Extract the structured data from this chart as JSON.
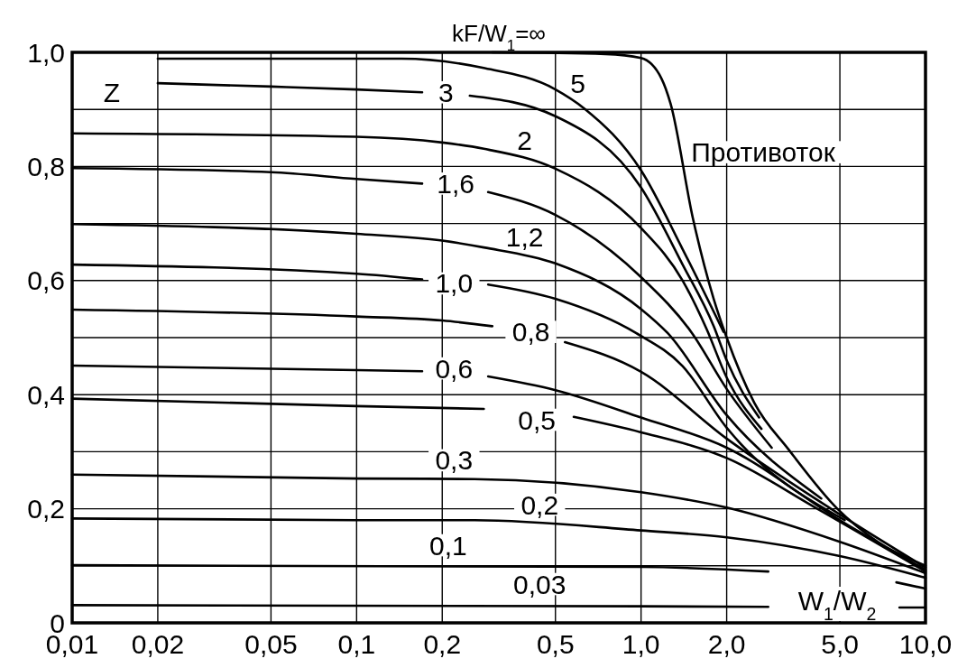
{
  "chart_data": {
    "type": "line",
    "title": "kF/W$_{1}$=∞",
    "xlabel": "W$_{1}$/W$_{2}$",
    "ylabel": "Z",
    "log": "x",
    "xlim": [
      0.01,
      10
    ],
    "ylim": [
      0,
      1
    ],
    "xticks": [
      {
        "value": 0.01,
        "label": "0,01"
      },
      {
        "value": 0.02,
        "label": "0,02"
      },
      {
        "value": 0.05,
        "label": "0,05"
      },
      {
        "value": 0.1,
        "label": "0,1"
      },
      {
        "value": 0.2,
        "label": "0,2"
      },
      {
        "value": 0.5,
        "label": "0,5"
      },
      {
        "value": 1,
        "label": "1,0"
      },
      {
        "value": 2,
        "label": "2,0"
      },
      {
        "value": 5,
        "label": "5,0"
      },
      {
        "value": 10,
        "label": "10,0"
      }
    ],
    "yticks": [
      0,
      {
        "value": 0.1,
        "label": null
      },
      {
        "value": 0.2,
        "label": "0,2"
      },
      {
        "value": 0.3,
        "label": null
      },
      {
        "value": 0.4,
        "label": "0,4"
      },
      {
        "value": 0.5,
        "label": null
      },
      {
        "value": 0.6,
        "label": "0,6"
      },
      {
        "value": 0.7,
        "label": null
      },
      {
        "value": 0.8,
        "label": "0,8"
      },
      {
        "value": 0.9,
        "label": null
      },
      {
        "value": 1,
        "label": "1,0"
      }
    ],
    "grid": true,
    "series": [
      {
        "name": "Противоток",
        "color": "#000000",
        "x": [
          0.3,
          0.75,
          1.0,
          1.18,
          1.27,
          1.52,
          1.8,
          2.0,
          2.5,
          3.3,
          4.9,
          6.8,
          10
        ],
        "values": [
          1.0,
          0.997,
          0.99,
          0.954,
          0.91,
          0.71,
          0.568,
          0.5,
          0.386,
          0.304,
          0.2,
          0.142,
          0.1
        ]
      },
      {
        "name": "5",
        "color": "#000000",
        "x": [
          0.02,
          0.144,
          0.277,
          0.5,
          0.63,
          1.0,
          1.4,
          1.95
        ],
        "values": [
          0.989,
          0.989,
          0.973,
          0.935,
          0.902,
          0.793,
          0.655,
          0.51
        ]
      },
      {
        "name": "3",
        "color": "#000000",
        "x": [
          0.02,
          0.05,
          0.1,
          0.17,
          0.2,
          0.25,
          0.5,
          1.0,
          1.4,
          1.8,
          2.0,
          2.6
        ],
        "values": [
          0.946,
          0.94,
          0.935,
          0.93,
          null,
          0.924,
          0.888,
          0.763,
          0.628,
          0.52,
          0.46,
          0.36
        ]
      },
      {
        "name": "2",
        "color": "#000000",
        "x": [
          0.01,
          0.1,
          0.2,
          0.28,
          0.5,
          1.0,
          1.4,
          1.7,
          2.0,
          2.65
        ],
        "values": [
          0.858,
          0.852,
          0.842,
          0.831,
          0.796,
          0.692,
          0.6,
          0.515,
          0.43,
          0.34
        ]
      },
      {
        "name": "1,6",
        "color": "#000000",
        "x": [
          0.01,
          0.05,
          0.1,
          0.17,
          0.22,
          0.29,
          0.5,
          1.0,
          1.51,
          2.0,
          2.88
        ],
        "values": [
          0.797,
          0.79,
          0.778,
          0.77,
          null,
          0.755,
          0.715,
          0.606,
          0.508,
          0.41,
          0.307
        ]
      },
      {
        "name": "1,2",
        "color": "#000000",
        "x": [
          0.01,
          0.1,
          0.2,
          0.28,
          0.5,
          1.0,
          1.24,
          2.0,
          4.3
        ],
        "values": [
          0.699,
          0.682,
          0.67,
          0.658,
          0.63,
          0.55,
          0.508,
          0.364,
          0.218
        ]
      },
      {
        "name": "1,0",
        "color": "#000000",
        "x": [
          0.01,
          0.1,
          0.17,
          0.22,
          0.29,
          0.5,
          0.96,
          1.4,
          2.0,
          5.2
        ],
        "values": [
          0.628,
          0.612,
          0.602,
          null,
          0.593,
          0.568,
          0.508,
          0.45,
          0.342,
          0.18
        ]
      },
      {
        "name": "0,8",
        "color": "#000000",
        "x": [
          0.01,
          0.1,
          0.2,
          0.3,
          0.41,
          0.54,
          1.0,
          2.0,
          5.0,
          10
        ],
        "values": [
          0.549,
          0.537,
          0.53,
          0.52,
          null,
          0.492,
          0.44,
          0.323,
          0.19,
          0.097
        ]
      },
      {
        "name": "0,6",
        "color": "#000000",
        "x": [
          0.01,
          0.1,
          0.17,
          0.22,
          0.29,
          0.5,
          1.0,
          2.0,
          5.0,
          10
        ],
        "values": [
          0.451,
          0.443,
          0.441,
          null,
          0.432,
          0.408,
          0.36,
          0.307,
          0.18,
          0.093
        ]
      },
      {
        "name": "0,5",
        "color": "#000000",
        "x": [
          0.01,
          0.1,
          0.28,
          0.43,
          0.58,
          1.0,
          2.0,
          4.1,
          10
        ],
        "values": [
          0.393,
          0.38,
          0.375,
          null,
          0.361,
          0.334,
          0.289,
          0.202,
          0.09
        ]
      },
      {
        "name": "0,3",
        "color": "#000000",
        "x": [
          0.01,
          0.1,
          0.26,
          1.0,
          2.0,
          5.0,
          10
        ],
        "values": [
          0.26,
          0.253,
          0.252,
          0.229,
          0.202,
          0.142,
          0.087
        ]
      },
      {
        "name": "0,2",
        "color": "#000000",
        "x": [
          0.01,
          0.1,
          0.26,
          1.0,
          2.0,
          5.0,
          10
        ],
        "values": [
          0.183,
          0.18,
          0.18,
          0.162,
          0.15,
          0.117,
          0.079
        ]
      },
      {
        "name": "0,1",
        "color": "#000000",
        "x": [
          0.01,
          1.0,
          2.8,
          5.0,
          7.9,
          10
        ],
        "values": [
          0.101,
          0.098,
          0.09,
          null,
          0.071,
          0.06
        ]
      },
      {
        "name": "0,03",
        "color": "#000000",
        "x": [
          0.01,
          1.0,
          2.8,
          5.0,
          8.1,
          10
        ],
        "values": [
          0.031,
          0.029,
          0.028,
          null,
          0.027,
          0.027
        ]
      }
    ]
  }
}
